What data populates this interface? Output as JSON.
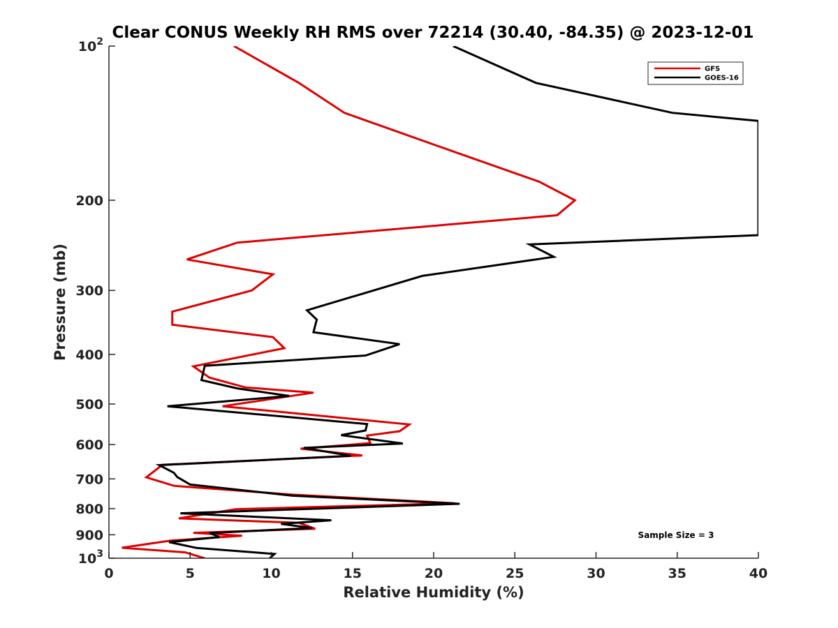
{
  "chart_data": {
    "type": "line",
    "title": "Clear CONUS Weekly RH RMS over 72214 (30.40, -84.35) @ 2023-12-01",
    "xlabel": "Relative Humidity (%)",
    "ylabel": "Pressure (mb)",
    "xlim": [
      0,
      40
    ],
    "ylim": [
      100,
      1000
    ],
    "yscale": "log",
    "y_reversed": true,
    "grid": false,
    "x_ticks": [
      0,
      5,
      10,
      15,
      20,
      25,
      30,
      35,
      40
    ],
    "x_tick_labels": [
      "0",
      "5",
      "10",
      "15",
      "20",
      "25",
      "30",
      "35",
      "40"
    ],
    "y_ticks": [
      100,
      200,
      300,
      400,
      500,
      600,
      700,
      800,
      900,
      1000
    ],
    "y_tick_labels": [
      {
        "base": "10",
        "exp": "2"
      },
      {
        "base": "200",
        "exp": ""
      },
      {
        "base": "300",
        "exp": ""
      },
      {
        "base": "400",
        "exp": ""
      },
      {
        "base": "500",
        "exp": ""
      },
      {
        "base": "600",
        "exp": ""
      },
      {
        "base": "700",
        "exp": ""
      },
      {
        "base": "800",
        "exp": ""
      },
      {
        "base": "900",
        "exp": ""
      },
      {
        "base": "10",
        "exp": "3"
      }
    ],
    "legend_position": "top-right",
    "annotation": "Sample Size = 3",
    "series": [
      {
        "name": "GFS",
        "color": "#dd0000",
        "points": [
          [
            7.7,
            100
          ],
          [
            11.7,
            118
          ],
          [
            14.5,
            135
          ],
          [
            21.3,
            161
          ],
          [
            26.5,
            184
          ],
          [
            28.7,
            200
          ],
          [
            27.6,
            214
          ],
          [
            7.9,
            242
          ],
          [
            4.8,
            261
          ],
          [
            10.1,
            279
          ],
          [
            8.8,
            300
          ],
          [
            3.9,
            330
          ],
          [
            3.9,
            350
          ],
          [
            10.1,
            370
          ],
          [
            10.8,
            389
          ],
          [
            5.2,
            422
          ],
          [
            6.2,
            444
          ],
          [
            8.4,
            464
          ],
          [
            12.6,
            475
          ],
          [
            7.0,
            505
          ],
          [
            18.5,
            548
          ],
          [
            17.9,
            565
          ],
          [
            15.9,
            576
          ],
          [
            16.1,
            596
          ],
          [
            11.8,
            611
          ],
          [
            15.6,
            630
          ],
          [
            3.3,
            657
          ],
          [
            2.3,
            695
          ],
          [
            4.0,
            722
          ],
          [
            11.2,
            751
          ],
          [
            21.3,
            781
          ],
          [
            7.8,
            802
          ],
          [
            4.3,
            836
          ],
          [
            11.7,
            853
          ],
          [
            12.7,
            876
          ],
          [
            5.2,
            892
          ],
          [
            8.2,
            904
          ],
          [
            3.8,
            924
          ],
          [
            0.8,
            954
          ],
          [
            4.7,
            974
          ],
          [
            5.9,
            1000
          ]
        ]
      },
      {
        "name": "GOES-16",
        "color": "#000000",
        "points": [
          [
            21.2,
            100
          ],
          [
            26.3,
            118
          ],
          [
            34.7,
            135
          ],
          [
            40.0,
            140
          ],
          [
            40.0,
            234
          ],
          [
            25.9,
            244
          ],
          [
            27.4,
            258
          ],
          [
            19.3,
            281
          ],
          [
            12.2,
            328
          ],
          [
            12.8,
            342
          ],
          [
            12.6,
            362
          ],
          [
            17.9,
            382
          ],
          [
            15.8,
            402
          ],
          [
            5.9,
            421
          ],
          [
            5.7,
            449
          ],
          [
            7.9,
            466
          ],
          [
            11.1,
            482
          ],
          [
            3.6,
            505
          ],
          [
            15.9,
            547
          ],
          [
            15.8,
            563
          ],
          [
            14.3,
            575
          ],
          [
            18.1,
            597
          ],
          [
            12.0,
            609
          ],
          [
            14.9,
            631
          ],
          [
            3.1,
            658
          ],
          [
            4.0,
            681
          ],
          [
            4.2,
            694
          ],
          [
            5.0,
            718
          ],
          [
            11.3,
            755
          ],
          [
            21.6,
            783
          ],
          [
            4.4,
            817
          ],
          [
            13.7,
            843
          ],
          [
            10.6,
            857
          ],
          [
            12.5,
            873
          ],
          [
            6.2,
            893
          ],
          [
            6.8,
            909
          ],
          [
            3.7,
            930
          ],
          [
            5.4,
            955
          ],
          [
            10.2,
            981
          ],
          [
            9.9,
            1000
          ]
        ]
      }
    ]
  }
}
